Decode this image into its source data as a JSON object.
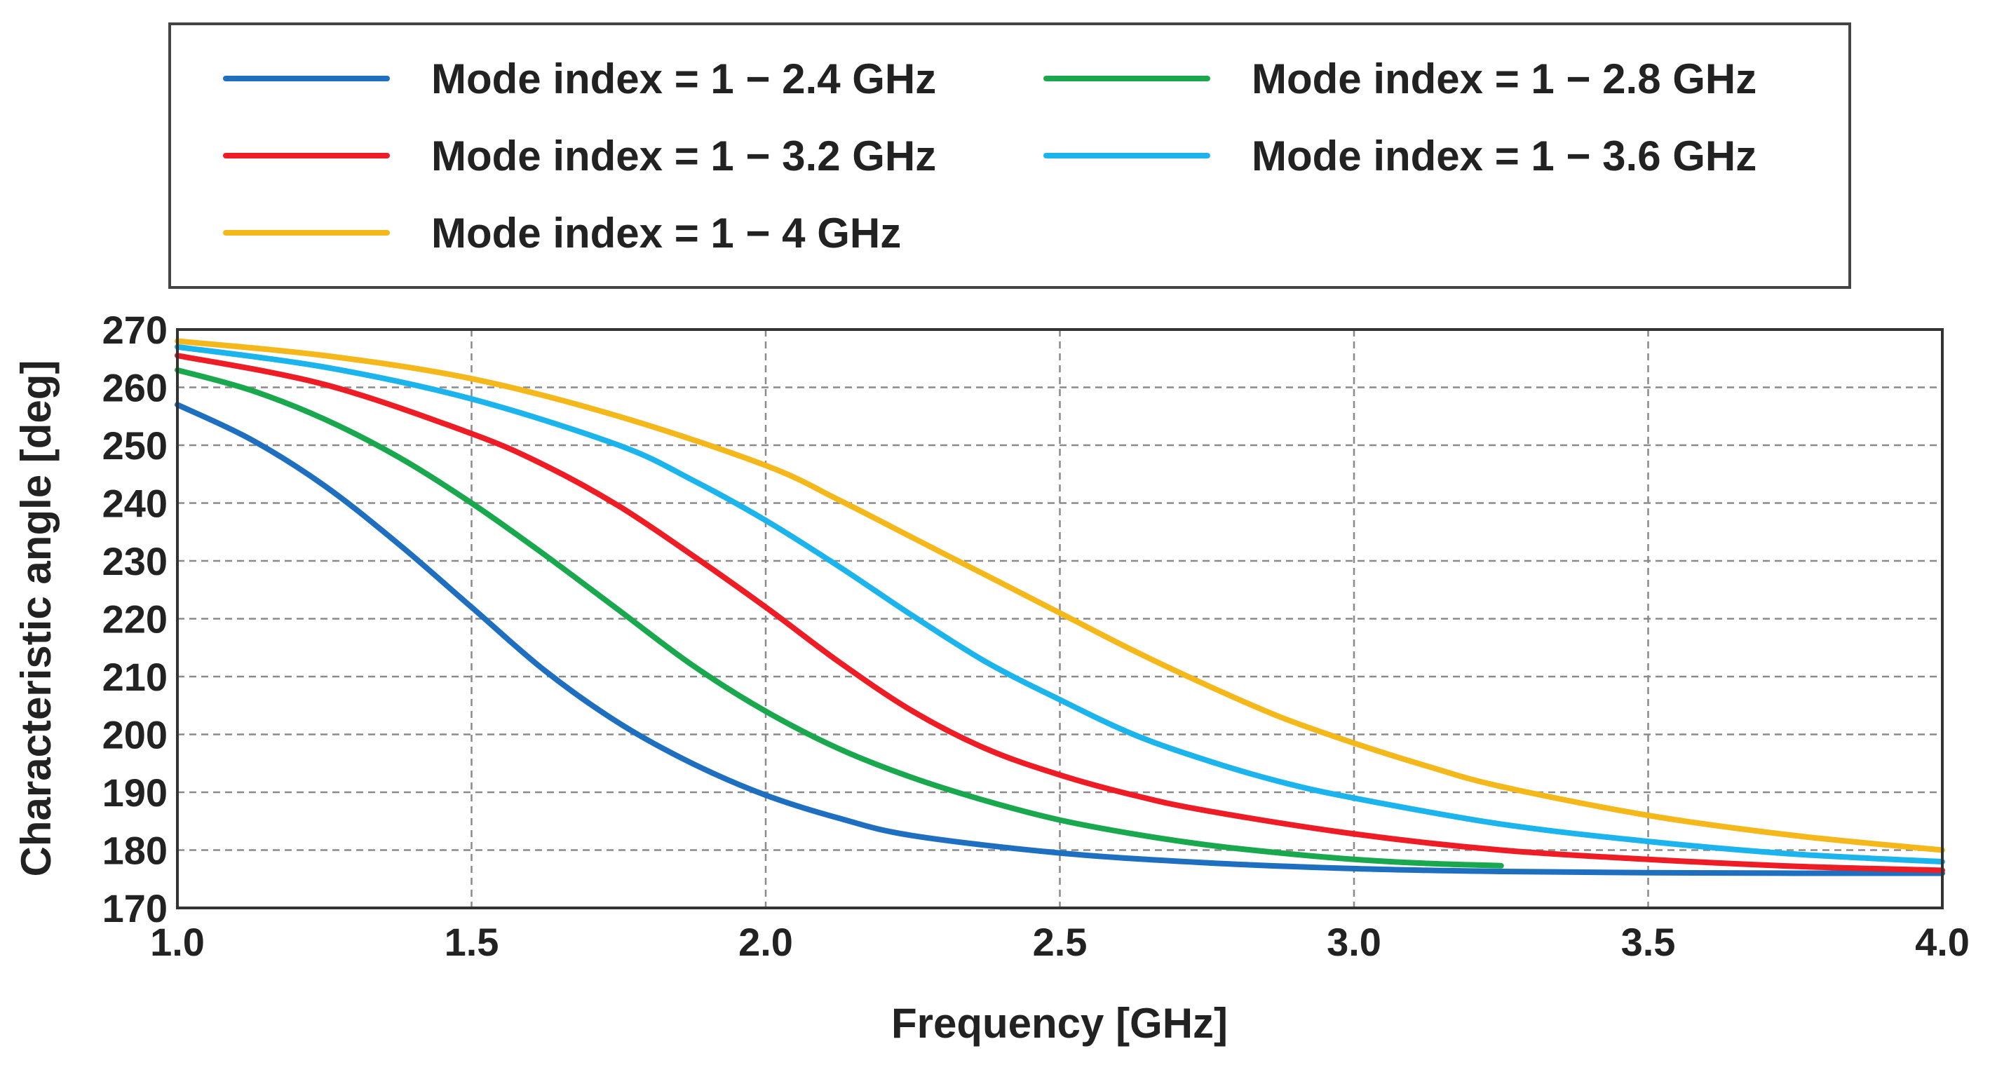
{
  "chart_data": {
    "type": "line",
    "title": "",
    "xlabel": "Frequency [GHz]",
    "ylabel": "Characteristic angle [deg]",
    "xlim": [
      1.0,
      4.0
    ],
    "ylim": [
      170,
      270
    ],
    "xticks": [
      1.0,
      1.5,
      2.0,
      2.5,
      3.0,
      3.5,
      4.0
    ],
    "xtick_labels": [
      "1.0",
      "1.5",
      "2.0",
      "2.5",
      "3.0",
      "3.5",
      "4.0"
    ],
    "yticks": [
      170,
      180,
      190,
      200,
      210,
      220,
      230,
      240,
      250,
      260,
      270
    ],
    "ytick_labels": [
      "170",
      "180",
      "190",
      "200",
      "210",
      "220",
      "230",
      "240",
      "250",
      "260",
      "270"
    ],
    "grid": true,
    "legend_position": "top",
    "series": [
      {
        "name": "Mode index = 1 − 2.4 GHz",
        "color": "#1f6fc0",
        "x": [
          1.0,
          1.125,
          1.25,
          1.375,
          1.5,
          1.625,
          1.75,
          1.875,
          2.0,
          2.125,
          2.25,
          2.5,
          2.75,
          3.0,
          3.25,
          3.5,
          3.75,
          4.0
        ],
        "y": [
          257,
          251,
          243,
          233,
          222,
          211,
          202,
          195,
          189.5,
          185.5,
          182.5,
          179.5,
          177.8,
          176.8,
          176.3,
          176.1,
          176.0,
          176.0
        ]
      },
      {
        "name": "Mode index = 1 − 2.8 GHz",
        "color": "#1aa84e",
        "x": [
          1.0,
          1.125,
          1.25,
          1.375,
          1.5,
          1.625,
          1.75,
          1.875,
          2.0,
          2.125,
          2.25,
          2.375,
          2.5,
          2.625,
          2.75,
          2.875,
          3.0,
          3.125,
          3.25
        ],
        "y": [
          263,
          259.5,
          254.5,
          248,
          240,
          231,
          221.5,
          212,
          204,
          197.5,
          192.5,
          188.5,
          185.2,
          182.8,
          180.9,
          179.5,
          178.4,
          177.7,
          177.3
        ]
      },
      {
        "name": "Mode index = 1 − 3.2 GHz",
        "color": "#ee1c24",
        "x": [
          1.0,
          1.25,
          1.5,
          1.625,
          1.75,
          1.875,
          2.0,
          2.125,
          2.25,
          2.375,
          2.5,
          2.625,
          2.75,
          3.0,
          3.25,
          3.5,
          3.75,
          4.0
        ],
        "y": [
          265.5,
          260.5,
          252,
          246.5,
          239.5,
          231,
          222,
          212.5,
          204,
          197.5,
          193,
          189.5,
          186.8,
          182.8,
          180,
          178.4,
          177.2,
          176.5
        ]
      },
      {
        "name": "Mode index = 1 − 3.6 GHz",
        "color": "#1cb4ec",
        "x": [
          1.0,
          1.25,
          1.5,
          1.75,
          1.875,
          2.0,
          2.125,
          2.25,
          2.375,
          2.5,
          2.625,
          2.75,
          2.875,
          3.0,
          3.25,
          3.5,
          3.75,
          4.0
        ],
        "y": [
          267,
          263.5,
          258,
          250,
          244,
          237,
          229,
          220.5,
          212.5,
          206,
          200,
          195.5,
          191.8,
          189,
          184.5,
          181.5,
          179.3,
          178
        ]
      },
      {
        "name": "Mode index = 1 − 4 GHz",
        "color": "#f5b81a",
        "x": [
          1.0,
          1.25,
          1.5,
          1.75,
          2.0,
          2.125,
          2.25,
          2.375,
          2.5,
          2.625,
          2.75,
          2.875,
          3.0,
          3.125,
          3.25,
          3.5,
          3.75,
          4.0
        ],
        "y": [
          268,
          265.5,
          261.5,
          255,
          246.5,
          240.5,
          234,
          227.5,
          221,
          214.5,
          208.5,
          203,
          198.5,
          194.5,
          191,
          186,
          182.5,
          180
        ]
      }
    ]
  }
}
